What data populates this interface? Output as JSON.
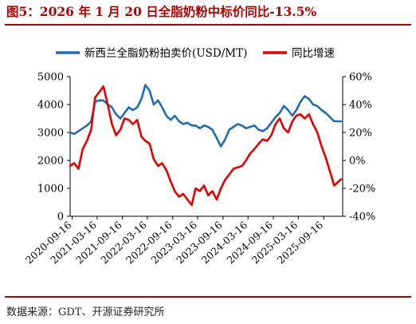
{
  "figure": {
    "title": "图5：2026 年 1 月 20 日全脂奶粉中标价同比-13.5%",
    "source": "数据来源：GDT、开源证券研究所"
  },
  "chart_data": {
    "type": "line",
    "x_ticks": [
      "2020-09-16",
      "2021-03-16",
      "2021-09-16",
      "2022-03-16",
      "2022-09-16",
      "2023-03-16",
      "2023-09-16",
      "2024-03-16",
      "2024-09-16",
      "2025-03-16",
      "2025-09-16"
    ],
    "left_axis": {
      "ylim": [
        0,
        5000
      ],
      "ticks": [
        "0",
        "1000",
        "2000",
        "3000",
        "4000",
        "5000"
      ]
    },
    "right_axis": {
      "ylim": [
        -40,
        60
      ],
      "ticks": [
        "-40%",
        "-20%",
        "0%",
        "20%",
        "40%",
        "60%"
      ]
    },
    "grid": false,
    "legend_position": "top",
    "series": [
      {
        "name": "新西兰全脂奶粉拍卖价(USD/MT)",
        "axis": "left",
        "color": "#1f6eb5",
        "x": [
          "2020-09-01",
          "2020-10-01",
          "2020-11-01",
          "2020-12-01",
          "2021-01-01",
          "2021-02-01",
          "2021-03-01",
          "2021-04-01",
          "2021-05-01",
          "2021-06-01",
          "2021-07-01",
          "2021-08-01",
          "2021-09-01",
          "2021-10-01",
          "2021-11-01",
          "2021-12-01",
          "2022-01-01",
          "2022-02-01",
          "2022-03-01",
          "2022-04-01",
          "2022-05-01",
          "2022-06-01",
          "2022-07-01",
          "2022-08-01",
          "2022-09-01",
          "2022-10-01",
          "2022-11-01",
          "2022-12-01",
          "2023-01-01",
          "2023-02-01",
          "2023-03-01",
          "2023-04-01",
          "2023-05-01",
          "2023-06-01",
          "2023-07-01",
          "2023-08-01",
          "2023-09-01",
          "2023-10-01",
          "2023-11-01",
          "2023-12-01",
          "2024-01-01",
          "2024-02-01",
          "2024-03-01",
          "2024-04-01",
          "2024-05-01",
          "2024-06-01",
          "2024-07-01",
          "2024-08-01",
          "2024-09-01",
          "2024-10-01",
          "2024-11-01",
          "2024-12-01",
          "2025-01-01",
          "2025-02-01",
          "2025-03-01",
          "2025-04-01",
          "2025-05-01",
          "2025-06-01",
          "2025-07-01",
          "2025-08-01",
          "2025-09-01",
          "2025-10-01",
          "2025-11-01",
          "2025-12-01",
          "2026-01-20"
        ],
        "values": [
          3000,
          2950,
          3050,
          3150,
          3250,
          3400,
          4100,
          4150,
          4150,
          4000,
          3900,
          3650,
          3500,
          3700,
          3900,
          3800,
          3900,
          4200,
          4700,
          4500,
          4000,
          4150,
          3900,
          3600,
          3450,
          3600,
          3400,
          3300,
          3350,
          3250,
          3250,
          3150,
          3250,
          3200,
          3100,
          2800,
          2500,
          2750,
          3100,
          3200,
          3300,
          3250,
          3150,
          3200,
          3250,
          3100,
          3050,
          3150,
          3350,
          3550,
          3700,
          3950,
          3800,
          3600,
          3800,
          4100,
          4300,
          4200,
          4000,
          3950,
          3800,
          3700,
          3550,
          3400,
          3400
        ]
      },
      {
        "name": "同比增速",
        "axis": "right",
        "color": "#e60000",
        "x": [
          "2020-09-01",
          "2020-10-01",
          "2020-11-01",
          "2020-12-01",
          "2021-01-01",
          "2021-02-01",
          "2021-03-01",
          "2021-04-01",
          "2021-05-01",
          "2021-06-01",
          "2021-07-01",
          "2021-08-01",
          "2021-09-01",
          "2021-10-01",
          "2021-11-01",
          "2021-12-01",
          "2022-01-01",
          "2022-02-01",
          "2022-03-01",
          "2022-04-01",
          "2022-05-01",
          "2022-06-01",
          "2022-07-01",
          "2022-08-01",
          "2022-09-01",
          "2022-10-01",
          "2022-11-01",
          "2022-12-01",
          "2023-01-01",
          "2023-02-01",
          "2023-03-01",
          "2023-04-01",
          "2023-05-01",
          "2023-06-01",
          "2023-07-01",
          "2023-08-01",
          "2023-09-01",
          "2023-10-01",
          "2023-11-01",
          "2023-12-01",
          "2024-01-01",
          "2024-02-01",
          "2024-03-01",
          "2024-04-01",
          "2024-05-01",
          "2024-06-01",
          "2024-07-01",
          "2024-08-01",
          "2024-09-01",
          "2024-10-01",
          "2024-11-01",
          "2024-12-01",
          "2025-01-01",
          "2025-02-01",
          "2025-03-01",
          "2025-04-01",
          "2025-05-01",
          "2025-06-01",
          "2025-07-01",
          "2025-08-01",
          "2025-09-01",
          "2025-10-01",
          "2025-11-01",
          "2025-12-01",
          "2026-01-20"
        ],
        "values": [
          -4,
          -2,
          -6,
          8,
          14,
          22,
          45,
          49,
          53,
          40,
          26,
          18,
          22,
          30,
          29,
          26,
          29,
          17,
          14,
          12,
          1,
          -4,
          -2,
          -7,
          -15,
          -22,
          -26,
          -24,
          -28,
          -32,
          -20,
          -22,
          -18,
          -25,
          -22,
          -28,
          -20,
          -14,
          -10,
          -6,
          -5,
          -4,
          0,
          5,
          8,
          12,
          15,
          14,
          18,
          26,
          30,
          23,
          20,
          28,
          32,
          33,
          30,
          33,
          26,
          20,
          10,
          2,
          -8,
          -18,
          -13.5
        ]
      }
    ]
  }
}
